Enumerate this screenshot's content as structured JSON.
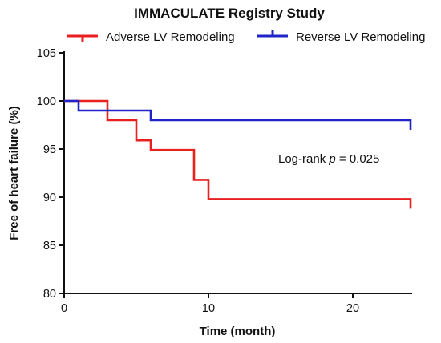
{
  "chart_data": {
    "type": "line",
    "step": true,
    "title": "IMMACULATE Registry Study",
    "xlabel": "Time (month)",
    "ylabel": "Free of heart failure (%)",
    "xlim": [
      0,
      24
    ],
    "ylim": [
      80,
      105
    ],
    "xticks": [
      0,
      10,
      20
    ],
    "yticks": [
      80,
      85,
      90,
      95,
      100,
      105
    ],
    "grid": false,
    "legend_position": "top",
    "annotation": {
      "prefix": "Log-rank ",
      "italic": "p",
      "suffix": " = 0.025"
    },
    "series": [
      {
        "name": "Adverse LV Remodeling",
        "color": "#e8201f",
        "x": [
          0,
          3,
          5,
          6,
          9,
          10,
          24
        ],
        "y": [
          100,
          98,
          95.9,
          94.9,
          91.8,
          89.8,
          88.8
        ]
      },
      {
        "name": "Reverse LV Remodeling",
        "color": "#1f24c8",
        "x": [
          0,
          1,
          6,
          24
        ],
        "y": [
          100,
          99,
          98,
          97
        ]
      }
    ]
  }
}
